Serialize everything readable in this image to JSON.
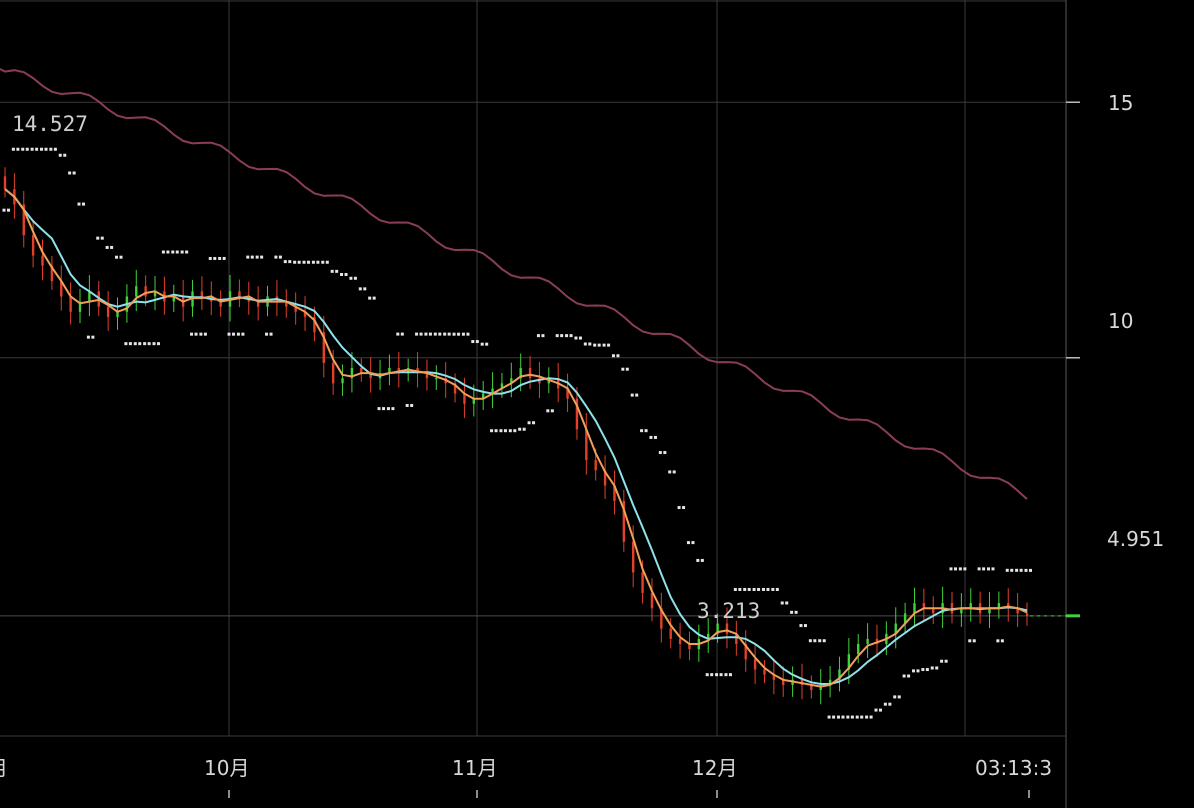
{
  "chart_data": {
    "type": "candlestick",
    "x_axis": {
      "tick_labels": [
        "月",
        "10月",
        "11月",
        "12月",
        "03:13:3"
      ]
    },
    "y_axis": {
      "range": [
        2.6,
        17.0
      ],
      "tick_labels": [
        "15",
        "10"
      ],
      "tick_values": [
        15,
        10
      ],
      "last_price_label": "4.951",
      "last_price": 4.951
    },
    "annotations": {
      "high_label": "14.527",
      "high_value": 14.527,
      "low_label": "3.213",
      "low_value": 3.213
    },
    "colors": {
      "up": "#41d23a",
      "down": "#e2402a",
      "ma_fast": "#f0a05a",
      "ma_mid": "#8fe2ea",
      "ma_slow": "#8a3e52",
      "bands": "#e6e6e6",
      "grid": "#3a3a3a"
    },
    "closes": [
      13.3,
      13.0,
      12.4,
      12.0,
      11.8,
      11.5,
      11.2,
      10.9,
      11.1,
      11.3,
      11.0,
      10.8,
      10.9,
      11.2,
      11.4,
      11.2,
      11.3,
      11.1,
      11.2,
      11.0,
      11.3,
      11.2,
      11.1,
      11.0,
      11.3,
      11.2,
      11.1,
      11.0,
      11.2,
      11.1,
      11.0,
      10.9,
      10.8,
      10.5,
      9.9,
      9.5,
      9.6,
      9.8,
      9.7,
      9.6,
      9.7,
      9.8,
      9.7,
      9.8,
      9.7,
      9.6,
      9.6,
      9.5,
      9.3,
      9.1,
      9.2,
      9.3,
      9.4,
      9.5,
      9.6,
      9.8,
      9.6,
      9.5,
      9.6,
      9.4,
      9.2,
      8.6,
      8.0,
      7.8,
      7.5,
      7.2,
      6.4,
      5.8,
      5.4,
      5.1,
      4.7,
      4.5,
      4.4,
      4.3,
      4.5,
      4.6,
      4.8,
      4.6,
      4.4,
      4.1,
      3.9,
      3.8,
      3.7,
      3.6,
      3.7,
      3.6,
      3.5,
      3.6,
      3.7,
      3.9,
      4.2,
      4.4,
      4.5,
      4.4,
      4.6,
      4.8,
      5.0,
      5.2,
      5.1,
      5.0,
      5.2,
      5.0,
      5.1,
      5.2,
      5.0,
      5.1,
      5.2,
      5.1,
      5.0,
      4.95
    ]
  }
}
